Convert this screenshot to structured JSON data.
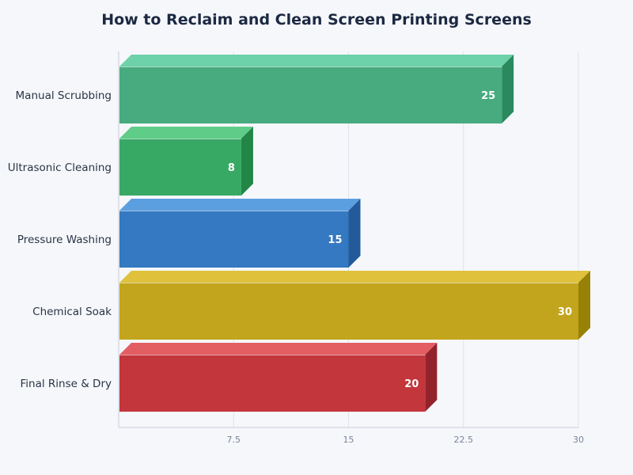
{
  "chart_data": {
    "type": "bar",
    "orientation": "horizontal",
    "title": "How to Reclaim and Clean Screen Printing Screens",
    "xlabel": "",
    "ylabel": "",
    "xlim": [
      0,
      30
    ],
    "x_ticks": [
      "7.5",
      "15",
      "22.5",
      "30"
    ],
    "x_tick_values": [
      7.5,
      15,
      22.5,
      30
    ],
    "grid": true,
    "legend": "none",
    "categories": [
      "Manual Scrubbing",
      "Ultrasonic Cleaning",
      "Pressure Washing",
      "Chemical Soak",
      "Final Rinse & Dry"
    ],
    "values": [
      25,
      8,
      15,
      30,
      20
    ],
    "value_labels": [
      "25",
      "8",
      "15",
      "30",
      "20"
    ],
    "colors": [
      {
        "front": "#48ab80",
        "top": "#6dd1a9",
        "side": "#2a8a5e"
      },
      {
        "front": "#38a965",
        "top": "#5fcc88",
        "side": "#228645"
      },
      {
        "front": "#3479c1",
        "top": "#5c9fe0",
        "side": "#225a9a"
      },
      {
        "front": "#c2a51c",
        "top": "#dfc13c",
        "side": "#988107"
      },
      {
        "front": "#c3363c",
        "top": "#e35e63",
        "side": "#93232a"
      }
    ]
  }
}
